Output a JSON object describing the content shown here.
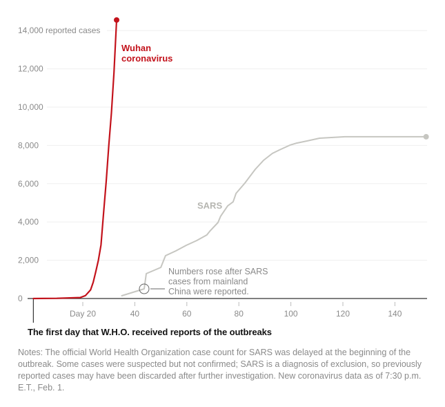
{
  "chart_data": {
    "type": "line",
    "title": "",
    "xlabel": "",
    "ylabel": "reported cases",
    "xlim": [
      0,
      152
    ],
    "ylim": [
      0,
      14000
    ],
    "grid": true,
    "y_ticks": [
      {
        "value": 0,
        "label": "0"
      },
      {
        "value": 2000,
        "label": "2,000"
      },
      {
        "value": 4000,
        "label": "4,000"
      },
      {
        "value": 6000,
        "label": "6,000"
      },
      {
        "value": 8000,
        "label": "8,000"
      },
      {
        "value": 10000,
        "label": "10,000"
      },
      {
        "value": 12000,
        "label": "12,000"
      },
      {
        "value": 14000,
        "label": "14,000 reported cases"
      }
    ],
    "x_ticks": [
      {
        "value": 20,
        "label": "Day 20"
      },
      {
        "value": 40,
        "label": "40"
      },
      {
        "value": 60,
        "label": "60"
      },
      {
        "value": 80,
        "label": "80"
      },
      {
        "value": 100,
        "label": "100"
      },
      {
        "value": 120,
        "label": "120"
      },
      {
        "value": 140,
        "label": "140"
      }
    ],
    "series": [
      {
        "name": "Wuhan coronavirus",
        "label_lines": [
          "Wuhan",
          "coronavirus"
        ],
        "color": "#c3121b",
        "end_marker": true,
        "x": [
          1,
          10,
          19,
          21,
          23,
          24,
          25,
          26,
          27,
          28,
          29,
          30,
          31,
          32,
          33
        ],
        "y": [
          0,
          10,
          50,
          150,
          450,
          850,
          1400,
          2000,
          2800,
          4500,
          6100,
          8000,
          9700,
          11800,
          14550
        ]
      },
      {
        "name": "SARS",
        "label_lines": [
          "SARS"
        ],
        "color": "#c6c6c1",
        "end_marker": true,
        "x": [
          35,
          43.6,
          44.4,
          50,
          51.8,
          55.8,
          59.8,
          63.8,
          67.7,
          69,
          72,
          73,
          75.7,
          77.8,
          78.9,
          82.3,
          86.3,
          89.5,
          92.9,
          95.6,
          99.6,
          102.2,
          106.2,
          111,
          120.8,
          136.7,
          152
        ],
        "y": [
          145,
          505,
          1300,
          1625,
          2240,
          2490,
          2780,
          3030,
          3320,
          3540,
          3970,
          4300,
          4840,
          5050,
          5490,
          6030,
          6750,
          7220,
          7580,
          7760,
          8010,
          8120,
          8230,
          8375,
          8450,
          8450,
          8450
        ]
      }
    ],
    "annotations": [
      {
        "x": 43.6,
        "y": 505,
        "text_lines": [
          "Numbers rose after SARS",
          "cases from mainland",
          "China were reported."
        ]
      }
    ],
    "reference_line": {
      "x": 1,
      "label": "The first day that W.H.O. received reports of the outbreaks"
    }
  },
  "notes": "Notes: The official World Health Organization case count for SARS was delayed at the beginning of the outbreak. Some cases were suspected but not confirmed; SARS is a diagnosis of exclusion, so previously reported cases may have been discarded after further investigation. New coronavirus data as of 7:30 p.m. E.T., Feb. 1."
}
